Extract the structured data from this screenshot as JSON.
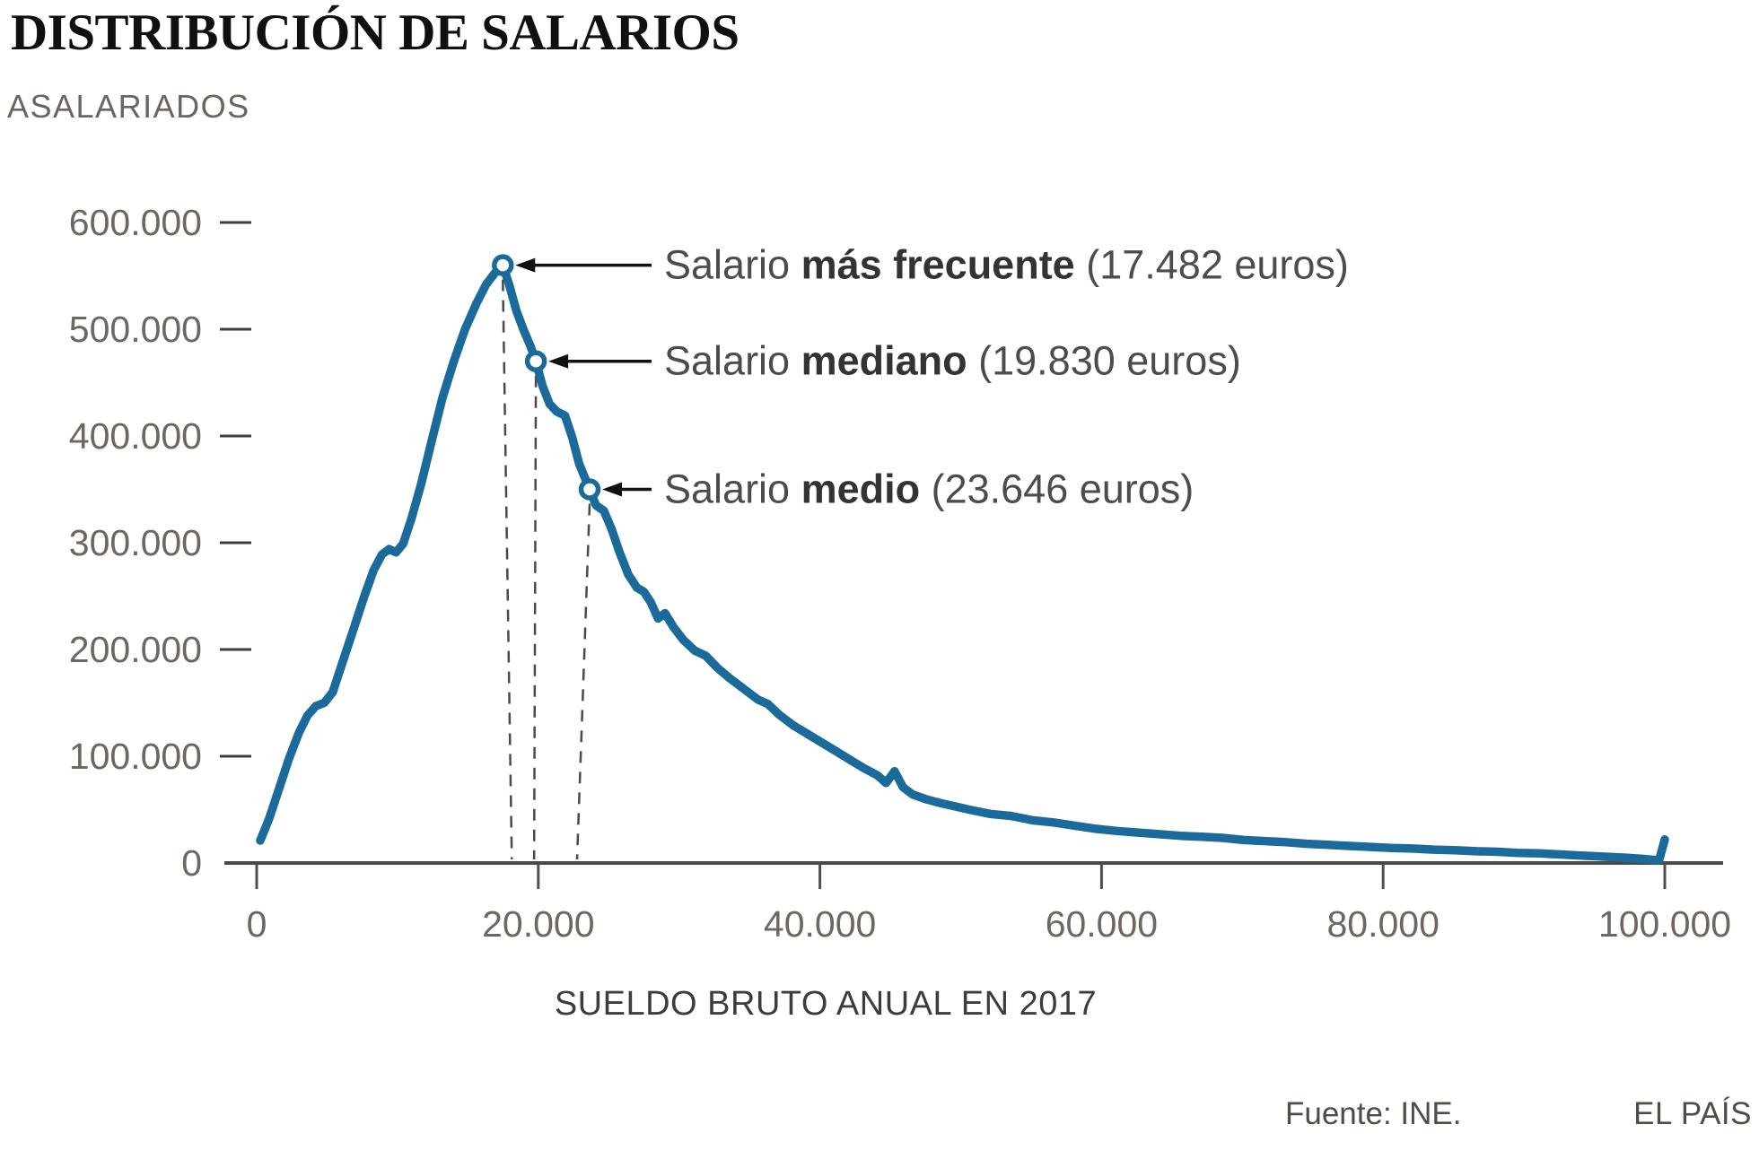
{
  "header": {
    "title": "DISTRIBUCIÓN DE SALARIOS"
  },
  "footer": {
    "source": "Fuente: INE.",
    "brand": "EL PAÍS"
  },
  "colors": {
    "line": "#1b6a9c",
    "axis": "#4a4a4a",
    "tick": "#4f4f4f",
    "drop_line": "#4a4a4a",
    "arrow": "#111111",
    "axis_label": "#6e6761"
  },
  "chart_data": {
    "type": "line",
    "title": "DISTRIBUCIÓN DE SALARIOS",
    "xlabel": "SUELDO BRUTO ANUAL EN 2017",
    "ylabel": "ASALARIADOS",
    "grid": false,
    "legend_position": "none",
    "xlim": [
      0,
      100000
    ],
    "ylim": [
      0,
      600000
    ],
    "x_ticks": [
      0,
      20000,
      40000,
      60000,
      80000,
      100000
    ],
    "x_tick_labels": [
      "0",
      "20.000",
      "40.000",
      "60.000",
      "80.000",
      "100.000"
    ],
    "y_ticks": [
      0,
      100000,
      200000,
      300000,
      400000,
      500000,
      600000
    ],
    "y_tick_labels": [
      "0",
      "100.000",
      "200.000",
      "300.000",
      "400.000",
      "500.000",
      "600.000"
    ],
    "annotations": [
      {
        "prefix": "Salario ",
        "keyword": "más frecuente",
        "suffix": " (17.482 euros)",
        "x": 17482,
        "y": 560000
      },
      {
        "prefix": "Salario ",
        "keyword": "mediano",
        "suffix": " (19.830 euros)",
        "x": 19830,
        "y": 470000
      },
      {
        "prefix": "Salario ",
        "keyword": "medio",
        "suffix": " (23.646 euros)",
        "x": 23646,
        "y": 350000
      }
    ],
    "series": [
      {
        "name": "Asalariados por sueldo bruto anual",
        "points": [
          [
            255,
            21000
          ],
          [
            900,
            42000
          ],
          [
            1600,
            70000
          ],
          [
            2300,
            98000
          ],
          [
            3000,
            122000
          ],
          [
            3600,
            138000
          ],
          [
            4200,
            147000
          ],
          [
            4800,
            150000
          ],
          [
            5400,
            160000
          ],
          [
            6100,
            188000
          ],
          [
            6900,
            220000
          ],
          [
            7600,
            248000
          ],
          [
            8300,
            274000
          ],
          [
            8900,
            289000
          ],
          [
            9400,
            294000
          ],
          [
            9900,
            291000
          ],
          [
            10400,
            299000
          ],
          [
            11000,
            323000
          ],
          [
            11700,
            356000
          ],
          [
            12400,
            394000
          ],
          [
            13200,
            436000
          ],
          [
            14000,
            470000
          ],
          [
            14800,
            500000
          ],
          [
            15600,
            524000
          ],
          [
            16300,
            542000
          ],
          [
            17000,
            554000
          ],
          [
            17482,
            560000
          ],
          [
            17950,
            541000
          ],
          [
            18450,
            517000
          ],
          [
            19000,
            498000
          ],
          [
            19450,
            484000
          ],
          [
            19830,
            470000
          ],
          [
            20300,
            447000
          ],
          [
            20800,
            430000
          ],
          [
            21300,
            423000
          ],
          [
            21900,
            419000
          ],
          [
            22400,
            399000
          ],
          [
            22900,
            374000
          ],
          [
            23646,
            350000
          ],
          [
            24100,
            335000
          ],
          [
            24650,
            330000
          ],
          [
            25200,
            313000
          ],
          [
            25800,
            290000
          ],
          [
            26400,
            270000
          ],
          [
            27000,
            258000
          ],
          [
            27500,
            254000
          ],
          [
            28000,
            244000
          ],
          [
            28500,
            229000
          ],
          [
            29000,
            234000
          ],
          [
            29600,
            221000
          ],
          [
            30300,
            209000
          ],
          [
            31100,
            199000
          ],
          [
            31900,
            194000
          ],
          [
            32700,
            183000
          ],
          [
            33600,
            173000
          ],
          [
            34600,
            163000
          ],
          [
            35600,
            153000
          ],
          [
            36300,
            149000
          ],
          [
            37100,
            139000
          ],
          [
            38100,
            129000
          ],
          [
            39100,
            121000
          ],
          [
            40100,
            113000
          ],
          [
            41100,
            105000
          ],
          [
            42100,
            97000
          ],
          [
            43100,
            89000
          ],
          [
            44100,
            82000
          ],
          [
            44700,
            75000
          ],
          [
            45300,
            86000
          ],
          [
            45900,
            71000
          ],
          [
            46600,
            64000
          ],
          [
            47600,
            59500
          ],
          [
            48600,
            56000
          ],
          [
            49600,
            53000
          ],
          [
            50600,
            50000
          ],
          [
            52100,
            46000
          ],
          [
            53600,
            44000
          ],
          [
            55100,
            40000
          ],
          [
            56600,
            38000
          ],
          [
            58100,
            35000
          ],
          [
            59600,
            32000
          ],
          [
            61100,
            30000
          ],
          [
            62600,
            28500
          ],
          [
            64100,
            27000
          ],
          [
            65600,
            25500
          ],
          [
            67100,
            24500
          ],
          [
            68600,
            23500
          ],
          [
            70100,
            21500
          ],
          [
            71600,
            20500
          ],
          [
            73100,
            19500
          ],
          [
            74600,
            18000
          ],
          [
            76100,
            17000
          ],
          [
            77600,
            16000
          ],
          [
            79100,
            15000
          ],
          [
            80600,
            14000
          ],
          [
            82100,
            13500
          ],
          [
            83600,
            12500
          ],
          [
            85100,
            12000
          ],
          [
            86600,
            11000
          ],
          [
            88100,
            10500
          ],
          [
            89600,
            9500
          ],
          [
            91100,
            9000
          ],
          [
            92600,
            8000
          ],
          [
            94100,
            7000
          ],
          [
            95600,
            6000
          ],
          [
            97100,
            5000
          ],
          [
            98300,
            4000
          ],
          [
            99100,
            3000
          ],
          [
            99600,
            2600
          ],
          [
            100000,
            22000
          ]
        ]
      }
    ]
  }
}
